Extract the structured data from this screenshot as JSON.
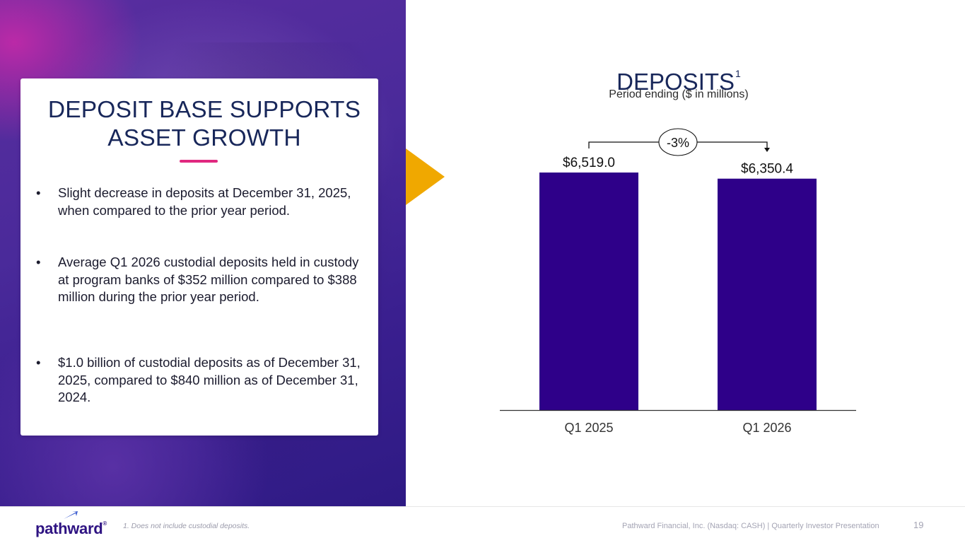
{
  "slide": {
    "heading_line1": "DEPOSIT BASE SUPPORTS",
    "heading_line2": "ASSET GROWTH",
    "bullets": [
      "Slight decrease in deposits at December 31, 2025, when compared to the prior year period.",
      "Average Q1 2026 custodial deposits held in custody at program banks of $352 million compared to $388 million during the prior year period.",
      "$1.0 billion of custodial deposits as of December 31, 2025, compared to $840 million as of December 31, 2024."
    ],
    "bullet_symbol": "•"
  },
  "chart_data": {
    "type": "bar",
    "title": "DEPOSITS",
    "title_footnote_mark": "1",
    "subtitle": "Period ending ($ in millions)",
    "categories": [
      "Q1 2025",
      "Q1 2026"
    ],
    "values": [
      6519.0,
      6350.4
    ],
    "data_labels": [
      "$6,519.0",
      "$6,350.4"
    ],
    "ylim": [
      0,
      6519.0
    ],
    "bar_color": "#2e0089",
    "change_label": "-3%"
  },
  "footer": {
    "logo_text": "pathward",
    "logo_mark": "®",
    "footnote": "1. Does not include custodial deposits.",
    "company_text": "Pathward Financial, Inc. (Nasdaq: CASH) | Quarterly Investor Presentation",
    "page_number": "19"
  },
  "colors": {
    "navy": "#18275a",
    "accent_pink": "#e0287f",
    "accent_gold": "#f0a800",
    "brand_purple": "#2e1382"
  }
}
